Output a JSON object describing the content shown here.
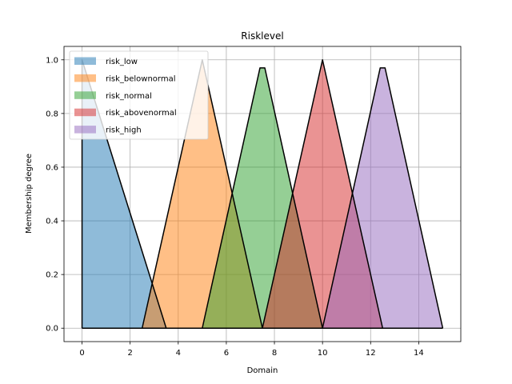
{
  "chart_data": {
    "type": "area",
    "title": "Risklevel",
    "xlabel": "Domain",
    "ylabel": "Membership degree",
    "xlim": [
      -0.75,
      15.75
    ],
    "ylim": [
      -0.05,
      1.05
    ],
    "xticks": [
      0,
      2,
      4,
      6,
      8,
      10,
      12,
      14
    ],
    "xtick_labels": [
      "0",
      "2",
      "4",
      "6",
      "8",
      "10",
      "12",
      "14"
    ],
    "yticks": [
      0.0,
      0.2,
      0.4,
      0.6,
      0.8,
      1.0
    ],
    "ytick_labels": [
      "0.0",
      "0.2",
      "0.4",
      "0.6",
      "0.8",
      "1.0"
    ],
    "grid": true,
    "legend_position": "top-left",
    "series": [
      {
        "name": "risk_low",
        "color": "#1f77b4",
        "x": [
          0,
          0,
          3.5,
          15
        ],
        "y": [
          0,
          1.0,
          0,
          0
        ]
      },
      {
        "name": "risk_belownormal",
        "color": "#ff7f0e",
        "x": [
          0,
          2.5,
          5.0,
          7.5,
          15
        ],
        "y": [
          0,
          0,
          1.0,
          0,
          0
        ]
      },
      {
        "name": "risk_normal",
        "color": "#2ca02c",
        "x": [
          0,
          5.0,
          7.4,
          7.6,
          10.0,
          15
        ],
        "y": [
          0,
          0,
          0.97,
          0.97,
          0,
          0
        ]
      },
      {
        "name": "risk_abovenormal",
        "color": "#d62728",
        "x": [
          0,
          7.5,
          10.0,
          12.5,
          15
        ],
        "y": [
          0,
          0,
          1.0,
          0,
          0
        ]
      },
      {
        "name": "risk_high",
        "color": "#9467bd",
        "x": [
          0,
          10.0,
          12.4,
          12.6,
          15
        ],
        "y": [
          0,
          0,
          0.97,
          0.97,
          0
        ]
      }
    ]
  }
}
